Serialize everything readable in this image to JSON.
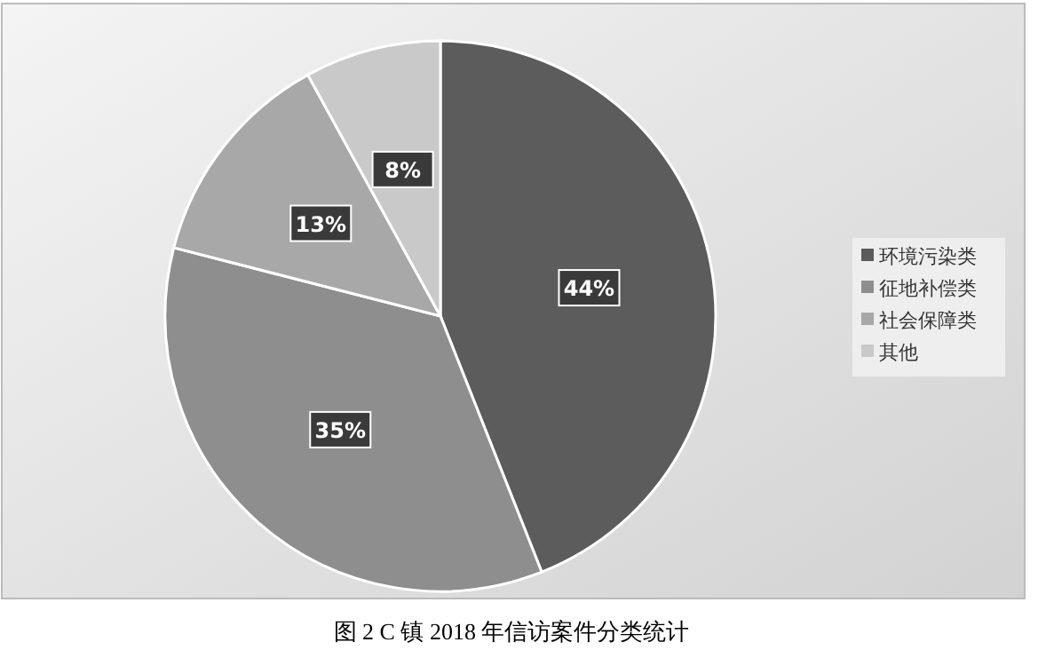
{
  "chart_data": {
    "type": "pie",
    "categories": [
      "环境污染类",
      "征地补偿类",
      "社会保障类",
      "其他"
    ],
    "values": [
      44,
      35,
      13,
      8
    ],
    "colors": [
      "#5c5c5c",
      "#8e8e8e",
      "#a8a8a8",
      "#c9c9c9"
    ],
    "value_labels": [
      "44%",
      "35%",
      "13%",
      "8%"
    ],
    "legend": "right",
    "annotations": [
      "图 2 C 镇 2018 年信访案件分类统计"
    ]
  }
}
